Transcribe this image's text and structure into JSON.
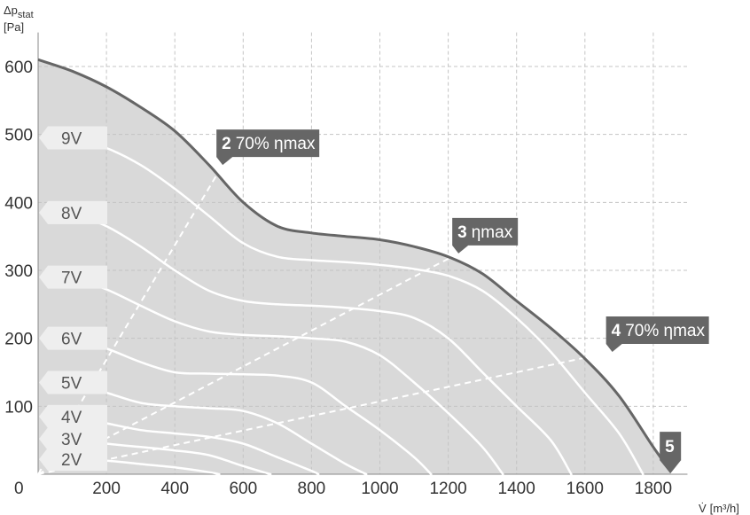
{
  "chart_data": {
    "type": "line",
    "ylabel": "Δp",
    "ylabel_sub": "stat",
    "yunit": "[Pa]",
    "xlabel": "V̇",
    "xunit": "[m³/h]",
    "xlim": [
      0,
      1900
    ],
    "ylim": [
      0,
      650
    ],
    "x_ticks": [
      0,
      200,
      400,
      600,
      800,
      1000,
      1200,
      1400,
      1600,
      1800
    ],
    "x_tick_labels": [
      "0",
      "200",
      "400",
      "600",
      "800",
      "1000",
      "1200",
      "1400",
      "1600",
      "1800"
    ],
    "y_ticks": [
      100,
      200,
      300,
      400,
      500,
      600
    ],
    "y_tick_labels": [
      "100",
      "200",
      "300",
      "400",
      "500",
      "600"
    ],
    "grid": true,
    "max_curve": [
      [
        0,
        610
      ],
      [
        100,
        593
      ],
      [
        200,
        570
      ],
      [
        300,
        540
      ],
      [
        400,
        505
      ],
      [
        500,
        455
      ],
      [
        600,
        400
      ],
      [
        700,
        365
      ],
      [
        800,
        355
      ],
      [
        900,
        350
      ],
      [
        1000,
        345
      ],
      [
        1100,
        335
      ],
      [
        1200,
        320
      ],
      [
        1300,
        295
      ],
      [
        1400,
        255
      ],
      [
        1500,
        215
      ],
      [
        1600,
        170
      ],
      [
        1700,
        115
      ],
      [
        1800,
        40
      ],
      [
        1850,
        5
      ]
    ],
    "series": [
      {
        "name": "9V",
        "points": [
          [
            100,
            495
          ],
          [
            200,
            480
          ],
          [
            300,
            455
          ],
          [
            400,
            420
          ],
          [
            500,
            380
          ],
          [
            600,
            340
          ],
          [
            700,
            320
          ],
          [
            800,
            315
          ],
          [
            900,
            312
          ],
          [
            1000,
            308
          ],
          [
            1100,
            302
          ],
          [
            1200,
            292
          ],
          [
            1300,
            270
          ],
          [
            1400,
            230
          ],
          [
            1500,
            180
          ],
          [
            1600,
            120
          ],
          [
            1700,
            60
          ],
          [
            1770,
            0
          ]
        ]
      },
      {
        "name": "8V",
        "points": [
          [
            100,
            385
          ],
          [
            200,
            365
          ],
          [
            300,
            335
          ],
          [
            400,
            300
          ],
          [
            500,
            270
          ],
          [
            600,
            255
          ],
          [
            700,
            250
          ],
          [
            800,
            248
          ],
          [
            900,
            245
          ],
          [
            1000,
            240
          ],
          [
            1100,
            230
          ],
          [
            1200,
            200
          ],
          [
            1300,
            150
          ],
          [
            1400,
            100
          ],
          [
            1500,
            50
          ],
          [
            1560,
            0
          ]
        ]
      },
      {
        "name": "7V",
        "points": [
          [
            100,
            290
          ],
          [
            200,
            272
          ],
          [
            300,
            248
          ],
          [
            400,
            225
          ],
          [
            500,
            210
          ],
          [
            600,
            205
          ],
          [
            700,
            203
          ],
          [
            800,
            200
          ],
          [
            900,
            195
          ],
          [
            1000,
            175
          ],
          [
            1100,
            135
          ],
          [
            1200,
            90
          ],
          [
            1300,
            40
          ],
          [
            1360,
            0
          ]
        ]
      },
      {
        "name": "6V",
        "points": [
          [
            100,
            200
          ],
          [
            200,
            185
          ],
          [
            300,
            165
          ],
          [
            400,
            150
          ],
          [
            500,
            148
          ],
          [
            600,
            147
          ],
          [
            700,
            145
          ],
          [
            800,
            135
          ],
          [
            900,
            100
          ],
          [
            1000,
            65
          ],
          [
            1100,
            25
          ],
          [
            1150,
            0
          ]
        ]
      },
      {
        "name": "5V",
        "points": [
          [
            100,
            135
          ],
          [
            200,
            120
          ],
          [
            300,
            105
          ],
          [
            400,
            100
          ],
          [
            500,
            97
          ],
          [
            600,
            93
          ],
          [
            700,
            75
          ],
          [
            800,
            45
          ],
          [
            900,
            15
          ],
          [
            960,
            0
          ]
        ]
      },
      {
        "name": "4V",
        "points": [
          [
            100,
            85
          ],
          [
            200,
            75
          ],
          [
            300,
            65
          ],
          [
            400,
            60
          ],
          [
            500,
            55
          ],
          [
            600,
            45
          ],
          [
            700,
            25
          ],
          [
            800,
            5
          ],
          [
            820,
            0
          ]
        ]
      },
      {
        "name": "3V",
        "points": [
          [
            100,
            52
          ],
          [
            200,
            45
          ],
          [
            300,
            40
          ],
          [
            400,
            35
          ],
          [
            500,
            28
          ],
          [
            600,
            12
          ],
          [
            680,
            0
          ]
        ]
      },
      {
        "name": "2V",
        "points": [
          [
            100,
            22
          ],
          [
            200,
            20
          ],
          [
            300,
            15
          ],
          [
            400,
            10
          ],
          [
            500,
            3
          ],
          [
            530,
            0
          ]
        ]
      }
    ],
    "operating_lines": [
      {
        "id": "2",
        "label": "70% ηmax",
        "end": [
          540,
          455
        ]
      },
      {
        "id": "3",
        "label": "ηmax",
        "end": [
          1230,
          325
        ]
      },
      {
        "id": "4",
        "label": "70% ηmax",
        "end": [
          1680,
          180
        ]
      }
    ],
    "point_5": {
      "id": "5",
      "at": [
        1850,
        5
      ]
    }
  }
}
